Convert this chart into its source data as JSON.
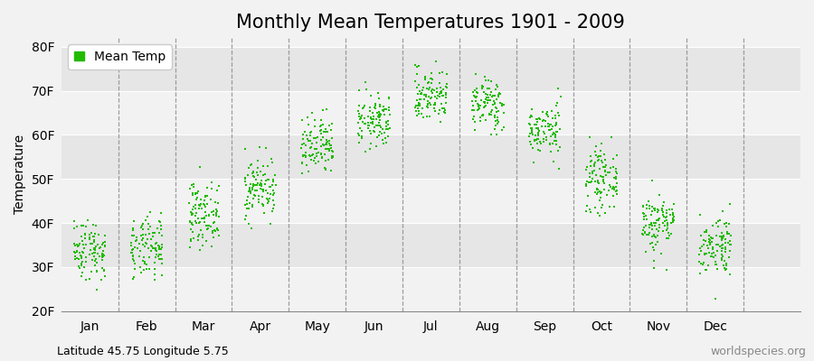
{
  "title": "Monthly Mean Temperatures 1901 - 2009",
  "ylabel": "Temperature",
  "xlabel_labels": [
    "Jan",
    "Feb",
    "Mar",
    "Apr",
    "May",
    "Jun",
    "Jul",
    "Aug",
    "Sep",
    "Oct",
    "Nov",
    "Dec"
  ],
  "ytick_labels": [
    "20F",
    "30F",
    "40F",
    "50F",
    "60F",
    "70F",
    "80F"
  ],
  "ytick_values": [
    20,
    30,
    40,
    50,
    60,
    70,
    80
  ],
  "ylim": [
    20,
    82
  ],
  "xlim": [
    -0.5,
    12.5
  ],
  "dot_color": "#22bb00",
  "dot_size": 3,
  "bg_light": "#f2f2f2",
  "bg_dark": "#e6e6e6",
  "legend_label": "Mean Temp",
  "footer_left": "Latitude 45.75 Longitude 5.75",
  "footer_right": "worldspecies.org",
  "title_fontsize": 15,
  "axis_fontsize": 10,
  "footer_fontsize": 9,
  "monthly_means": [
    34,
    34,
    42,
    48,
    57,
    63,
    69,
    67,
    61,
    50,
    40,
    35
  ],
  "monthly_stds": [
    3.5,
    3.5,
    3.5,
    3.5,
    3.5,
    3.0,
    3.0,
    3.0,
    3.0,
    3.5,
    3.5,
    3.5
  ],
  "num_years": 109,
  "seed": 42,
  "jitter": 0.28
}
